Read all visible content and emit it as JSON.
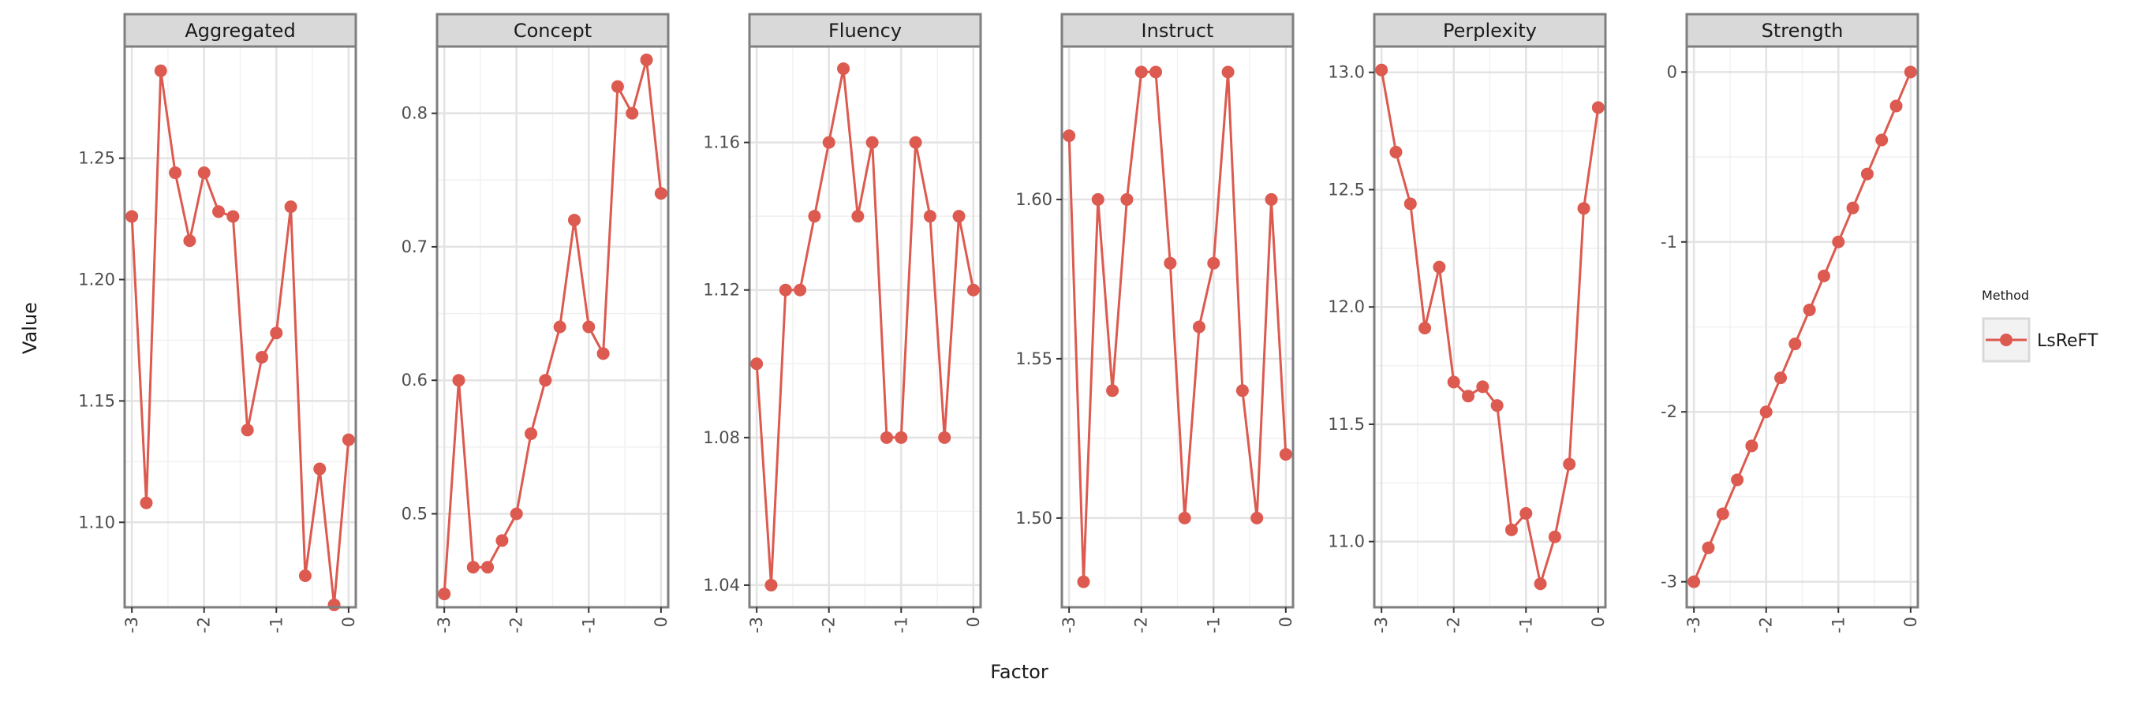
{
  "colors": {
    "series": "#dc5a4f",
    "strip_fill": "#d9d9d9",
    "panel_border": "#7f7f7f",
    "grid_major": "#e3e3e3",
    "grid_minor": "#f1f1f1"
  },
  "chart_data": {
    "type": "line",
    "layout": "faceted",
    "xlabel": "Factor",
    "ylabel": "Value",
    "legend": {
      "title": "Method",
      "entries": [
        "LsReFT"
      ],
      "position": "right"
    },
    "grid": true,
    "x_ticks": [
      -3,
      -2,
      -1,
      0
    ],
    "x_tick_labels": [
      "-3",
      "-2",
      "-1",
      "0"
    ],
    "xlim": [
      -3.1,
      0.1
    ],
    "x": [
      -3.0,
      -2.8,
      -2.6,
      -2.4,
      -2.2,
      -2.0,
      -1.8,
      -1.6,
      -1.4,
      -1.2,
      -1.0,
      -0.8,
      -0.6,
      -0.4,
      -0.2,
      0.0
    ],
    "panels": [
      {
        "title": "Aggregated",
        "ylim": [
          1.065,
          1.296
        ],
        "yticks": [
          1.1,
          1.15,
          1.2,
          1.25
        ],
        "ytick_labels": [
          "1.10",
          "1.15",
          "1.20",
          "1.25"
        ],
        "series": [
          {
            "name": "LsReFT",
            "values": [
              1.226,
              1.108,
              1.286,
              1.244,
              1.216,
              1.244,
              1.228,
              1.226,
              1.138,
              1.168,
              1.178,
              1.23,
              1.078,
              1.122,
              1.066,
              1.134
            ]
          }
        ]
      },
      {
        "title": "Concept",
        "ylim": [
          0.43,
          0.85
        ],
        "yticks": [
          0.5,
          0.6,
          0.7,
          0.8
        ],
        "ytick_labels": [
          "0.5",
          "0.6",
          "0.7",
          "0.8"
        ],
        "series": [
          {
            "name": "LsReFT",
            "values": [
              0.44,
              0.6,
              0.46,
              0.46,
              0.48,
              0.5,
              0.56,
              0.6,
              0.64,
              0.72,
              0.64,
              0.62,
              0.82,
              0.8,
              0.84,
              0.74
            ]
          }
        ]
      },
      {
        "title": "Fluency",
        "ylim": [
          1.034,
          1.186
        ],
        "yticks": [
          1.04,
          1.08,
          1.12,
          1.16
        ],
        "ytick_labels": [
          "1.04",
          "1.08",
          "1.12",
          "1.16"
        ],
        "series": [
          {
            "name": "LsReFT",
            "values": [
              1.1,
              1.04,
              1.12,
              1.12,
              1.14,
              1.16,
              1.18,
              1.14,
              1.16,
              1.08,
              1.08,
              1.16,
              1.14,
              1.08,
              1.14,
              1.12
            ]
          }
        ]
      },
      {
        "title": "Instruct",
        "ylim": [
          1.472,
          1.648
        ],
        "yticks": [
          1.5,
          1.55,
          1.6
        ],
        "ytick_labels": [
          "1.50",
          "1.55",
          "1.60"
        ],
        "series": [
          {
            "name": "LsReFT",
            "values": [
              1.62,
              1.48,
              1.6,
              1.54,
              1.6,
              1.64,
              1.64,
              1.58,
              1.5,
              1.56,
              1.58,
              1.64,
              1.54,
              1.5,
              1.6,
              1.52
            ]
          }
        ]
      },
      {
        "title": "Perplexity",
        "ylim": [
          10.72,
          13.11
        ],
        "yticks": [
          11.0,
          11.5,
          12.0,
          12.5,
          13.0
        ],
        "ytick_labels": [
          "11.0",
          "11.5",
          "12.0",
          "12.5",
          "13.0"
        ],
        "series": [
          {
            "name": "LsReFT",
            "values": [
              13.01,
              12.66,
              12.44,
              11.91,
              12.17,
              11.68,
              11.62,
              11.66,
              11.58,
              11.05,
              11.12,
              10.82,
              11.02,
              11.33,
              12.42,
              12.85
            ]
          }
        ]
      },
      {
        "title": "Strength",
        "ylim": [
          -3.15,
          0.15
        ],
        "yticks": [
          -3,
          -2,
          -1,
          0
        ],
        "ytick_labels": [
          "-3",
          "-2",
          "-1",
          "0"
        ],
        "series": [
          {
            "name": "LsReFT",
            "values": [
              -3.0,
              -2.8,
              -2.6,
              -2.4,
              -2.2,
              -2.0,
              -1.8,
              -1.6,
              -1.4,
              -1.2,
              -1.0,
              -0.8,
              -0.6,
              -0.4,
              -0.2,
              0.0
            ]
          }
        ]
      }
    ]
  }
}
